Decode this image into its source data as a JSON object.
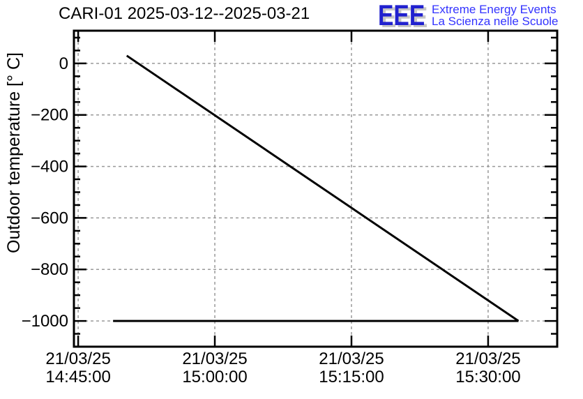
{
  "logo": {
    "letters": "EEE",
    "line1": "Extreme Energy Events",
    "line2": "La Scienza nelle Scuole",
    "letters_color": "#2121cf",
    "tagline_color": "#3333ff",
    "shadow_color": "#c6c6c6"
  },
  "chart_data": {
    "type": "line",
    "title": "CARI-01 2025-03-12--2025-03-21",
    "ylabel": "Outdoor temperature [° C]",
    "xlabel": "",
    "grid": true,
    "legend": "none",
    "axis_color": "#000000",
    "grid_color": "#999999",
    "line_color": "#000000",
    "x_ticks": [
      {
        "date": "21/03/25",
        "time": "14:45:00"
      },
      {
        "date": "21/03/25",
        "time": "15:00:00"
      },
      {
        "date": "21/03/25",
        "time": "15:15:00"
      },
      {
        "date": "21/03/25",
        "time": "15:30:00"
      }
    ],
    "x_range": [
      "14:44:32",
      "15:37:35"
    ],
    "y_ticks": [
      0,
      -200,
      -400,
      -600,
      -800,
      -1000
    ],
    "y_minor_step": 50,
    "ylim": [
      -1100,
      127
    ],
    "series": [
      {
        "name": "outdoor-temperature-trend",
        "points": [
          {
            "time": "14:50:20",
            "value": 30
          },
          {
            "time": "15:33:20",
            "value": -1000
          }
        ]
      },
      {
        "name": "outdoor-temperature-floor",
        "points": [
          {
            "time": "14:48:50",
            "value": -1000
          },
          {
            "time": "15:33:20",
            "value": -1000
          }
        ]
      }
    ]
  }
}
